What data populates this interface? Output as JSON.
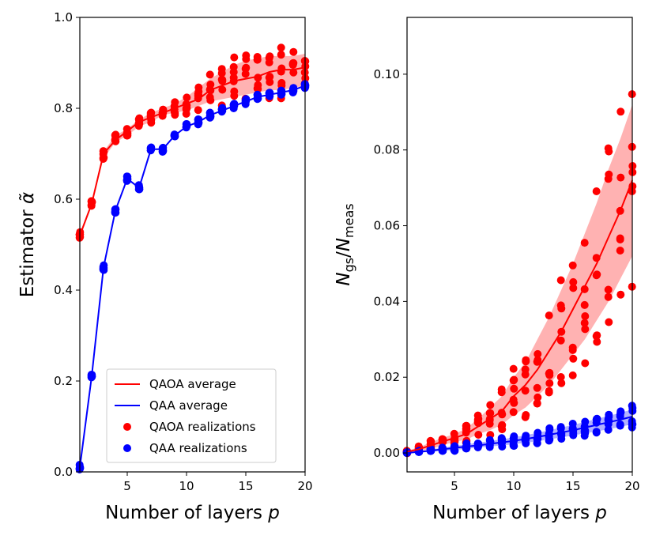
{
  "chart_data": [
    {
      "type": "line",
      "panel": "left",
      "xlabel": "Number of layers p",
      "ylabel": "Estimator α̃",
      "xlim": [
        1,
        20
      ],
      "ylim": [
        0,
        1.0
      ],
      "xticks": [
        5,
        10,
        15,
        20
      ],
      "yticks": [
        0.0,
        0.2,
        0.4,
        0.6,
        0.8,
        1.0
      ],
      "ytick_labels": [
        "0.0",
        "0.2",
        "0.4",
        "0.6",
        "0.8",
        "1.0"
      ],
      "legend_position": "lower-right",
      "legend": {
        "qaoa_avg": "QAOA average",
        "qaa_avg": "QAA average",
        "qaoa_real": "QAOA realizations",
        "qaa_real": "QAA realizations"
      },
      "x": [
        1,
        2,
        3,
        4,
        5,
        6,
        7,
        8,
        9,
        10,
        11,
        12,
        13,
        14,
        15,
        16,
        17,
        18,
        19,
        20
      ],
      "series": [
        {
          "name": "QAOA average",
          "color": "#ff0000",
          "values": [
            0.52,
            0.59,
            0.7,
            0.73,
            0.75,
            0.77,
            0.78,
            0.79,
            0.8,
            0.81,
            0.82,
            0.84,
            0.85,
            0.86,
            0.865,
            0.87,
            0.88,
            0.885,
            0.885,
            0.89
          ],
          "band_lo": [
            0.515,
            0.585,
            0.69,
            0.725,
            0.74,
            0.76,
            0.77,
            0.785,
            0.79,
            0.795,
            0.805,
            0.815,
            0.82,
            0.825,
            0.83,
            0.835,
            0.84,
            0.84,
            0.845,
            0.85
          ],
          "band_hi": [
            0.525,
            0.595,
            0.705,
            0.74,
            0.755,
            0.775,
            0.79,
            0.8,
            0.81,
            0.825,
            0.845,
            0.865,
            0.88,
            0.895,
            0.905,
            0.91,
            0.915,
            0.915,
            0.915,
            0.92
          ]
        },
        {
          "name": "QAA average",
          "color": "#0000ff",
          "values": [
            0.01,
            0.21,
            0.45,
            0.575,
            0.645,
            0.625,
            0.71,
            0.71,
            0.74,
            0.76,
            0.77,
            0.785,
            0.795,
            0.805,
            0.815,
            0.825,
            0.83,
            0.835,
            0.84,
            0.85
          ]
        }
      ]
    },
    {
      "type": "line",
      "panel": "right",
      "xlabel": "Number of layers p",
      "ylabel": "N_gs/N_meas",
      "xlim": [
        1,
        20
      ],
      "ylim": [
        -0.005,
        0.115
      ],
      "xticks": [
        5,
        10,
        15,
        20
      ],
      "yticks": [
        0.0,
        0.02,
        0.04,
        0.06,
        0.08,
        0.1
      ],
      "ytick_labels": [
        "0.00",
        "0.02",
        "0.04",
        "0.06",
        "0.08",
        "0.10"
      ],
      "x": [
        1,
        2,
        3,
        4,
        5,
        6,
        7,
        8,
        9,
        10,
        11,
        12,
        13,
        14,
        15,
        16,
        17,
        18,
        19,
        20
      ],
      "series": [
        {
          "name": "QAOA average",
          "color": "#ff0000",
          "values": [
            0.0003,
            0.001,
            0.002,
            0.003,
            0.004,
            0.005,
            0.007,
            0.009,
            0.011,
            0.015,
            0.018,
            0.022,
            0.027,
            0.032,
            0.038,
            0.044,
            0.05,
            0.057,
            0.064,
            0.072
          ],
          "band_lo": [
            0.0,
            0.0005,
            0.001,
            0.002,
            0.003,
            0.0035,
            0.005,
            0.006,
            0.0075,
            0.01,
            0.012,
            0.015,
            0.018,
            0.022,
            0.026,
            0.03,
            0.035,
            0.04,
            0.046,
            0.052
          ],
          "band_hi": [
            0.0006,
            0.0015,
            0.0028,
            0.004,
            0.005,
            0.0065,
            0.009,
            0.012,
            0.015,
            0.02,
            0.024,
            0.03,
            0.036,
            0.043,
            0.05,
            0.058,
            0.066,
            0.075,
            0.083,
            0.092
          ]
        },
        {
          "name": "QAA average",
          "color": "#0000ff",
          "values": [
            0.0,
            0.0003,
            0.0006,
            0.001,
            0.0013,
            0.0017,
            0.002,
            0.0024,
            0.0028,
            0.0032,
            0.0037,
            0.0042,
            0.0048,
            0.0054,
            0.006,
            0.0067,
            0.0074,
            0.0081,
            0.0088,
            0.0096
          ],
          "band_lo": [
            0.0,
            0.0001,
            0.0003,
            0.0006,
            0.0008,
            0.0011,
            0.0014,
            0.0017,
            0.002,
            0.0023,
            0.0027,
            0.0031,
            0.0036,
            0.0041,
            0.0046,
            0.0052,
            0.0057,
            0.0063,
            0.0069,
            0.0076
          ],
          "band_hi": [
            0.0002,
            0.0005,
            0.0009,
            0.0014,
            0.0018,
            0.0023,
            0.0027,
            0.0032,
            0.0036,
            0.0041,
            0.0047,
            0.0053,
            0.006,
            0.0067,
            0.0074,
            0.0082,
            0.009,
            0.0098,
            0.0106,
            0.0115
          ]
        }
      ]
    }
  ]
}
